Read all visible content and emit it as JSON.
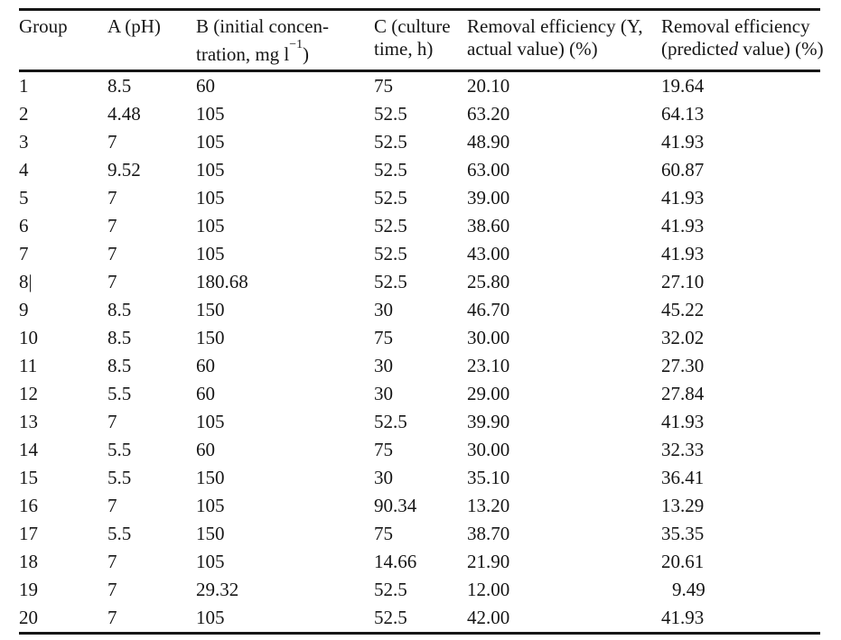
{
  "colors": {
    "background": "#ffffff",
    "text": "#161616",
    "rule": "#161616"
  },
  "table": {
    "columns": [
      {
        "key": "group",
        "line1": "Group"
      },
      {
        "key": "a_ph",
        "line1": "A (pH)"
      },
      {
        "key": "b_conc",
        "line1": "B (initial concen-",
        "line2_pre": "tration, mg l",
        "line2_sup": "−1",
        "line2_post": ")"
      },
      {
        "key": "c_time",
        "line1": "C (culture",
        "line2": "time, h)"
      },
      {
        "key": "y_actual",
        "line1": "Removal efficiency (Y,",
        "line2": "actual value) (%)"
      },
      {
        "key": "y_predicted",
        "line1": "Removal efficiency",
        "line2_pre": "(predicte",
        "line2_italic": "d",
        "line2_post": " value) (%)"
      }
    ],
    "rows": [
      {
        "group": "1",
        "a_ph": "8.5",
        "b_conc": "60",
        "c_time": "75",
        "y_actual": "20.10",
        "y_predicted": "19.64"
      },
      {
        "group": "2",
        "a_ph": "4.48",
        "b_conc": "105",
        "c_time": "52.5",
        "y_actual": "63.20",
        "y_predicted": "64.13"
      },
      {
        "group": "3",
        "a_ph": "7",
        "b_conc": "105",
        "c_time": "52.5",
        "y_actual": "48.90",
        "y_predicted": "41.93"
      },
      {
        "group": "4",
        "a_ph": "9.52",
        "b_conc": "105",
        "c_time": "52.5",
        "y_actual": "63.00",
        "y_predicted": "60.87"
      },
      {
        "group": "5",
        "a_ph": "7",
        "b_conc": "105",
        "c_time": "52.5",
        "y_actual": "39.00",
        "y_predicted": "41.93"
      },
      {
        "group": "6",
        "a_ph": "7",
        "b_conc": "105",
        "c_time": "52.5",
        "y_actual": "38.60",
        "y_predicted": "41.93"
      },
      {
        "group": "7",
        "a_ph": "7",
        "b_conc": "105",
        "c_time": "52.5",
        "y_actual": "43.00",
        "y_predicted": "41.93"
      },
      {
        "group": "8|",
        "a_ph": "7",
        "b_conc": "180.68",
        "c_time": "52.5",
        "y_actual": "25.80",
        "y_predicted": "27.10"
      },
      {
        "group": "9",
        "a_ph": "8.5",
        "b_conc": "150",
        "c_time": "30",
        "y_actual": "46.70",
        "y_predicted": "45.22"
      },
      {
        "group": "10",
        "a_ph": "8.5",
        "b_conc": "150",
        "c_time": "75",
        "y_actual": "30.00",
        "y_predicted": "32.02"
      },
      {
        "group": "11",
        "a_ph": "8.5",
        "b_conc": "60",
        "c_time": "30",
        "y_actual": "23.10",
        "y_predicted": "27.30"
      },
      {
        "group": "12",
        "a_ph": "5.5",
        "b_conc": "60",
        "c_time": "30",
        "y_actual": "29.00",
        "y_predicted": "27.84"
      },
      {
        "group": "13",
        "a_ph": "7",
        "b_conc": "105",
        "c_time": "52.5",
        "y_actual": "39.90",
        "y_predicted": "41.93"
      },
      {
        "group": "14",
        "a_ph": "5.5",
        "b_conc": "60",
        "c_time": "75",
        "y_actual": "30.00",
        "y_predicted": "32.33"
      },
      {
        "group": "15",
        "a_ph": "5.5",
        "b_conc": "150",
        "c_time": "30",
        "y_actual": "35.10",
        "y_predicted": "36.41"
      },
      {
        "group": "16",
        "a_ph": "7",
        "b_conc": "105",
        "c_time": "90.34",
        "y_actual": "13.20",
        "y_predicted": "13.29"
      },
      {
        "group": "17",
        "a_ph": "5.5",
        "b_conc": "150",
        "c_time": "75",
        "y_actual": "38.70",
        "y_predicted": "35.35"
      },
      {
        "group": "18",
        "a_ph": "7",
        "b_conc": "105",
        "c_time": "14.66",
        "y_actual": "21.90",
        "y_predicted": "20.61"
      },
      {
        "group": "19",
        "a_ph": "7",
        "b_conc": "29.32",
        "c_time": "52.5",
        "y_actual": "12.00",
        "y_predicted": "9.49"
      },
      {
        "group": "20",
        "a_ph": "7",
        "b_conc": "105",
        "c_time": "52.5",
        "y_actual": "42.00",
        "y_predicted": "41.93"
      }
    ]
  }
}
